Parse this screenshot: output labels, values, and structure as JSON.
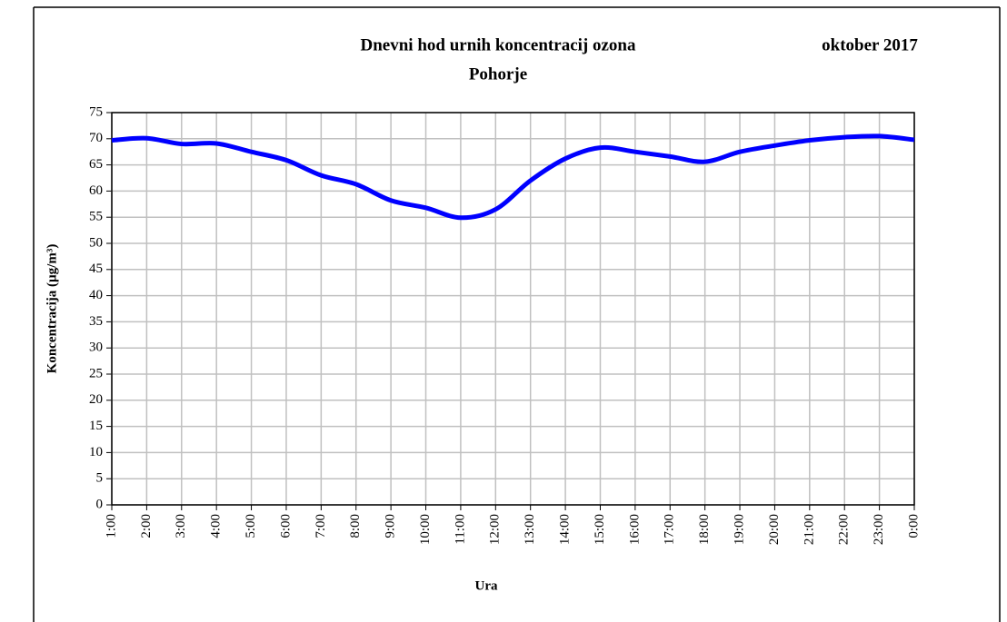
{
  "chart_data": {
    "type": "line",
    "title": "Dnevni hod urnih koncentracij ozona",
    "subtitle": "Pohorje",
    "annotation": "oktober 2017",
    "x_label": "Ura",
    "y_label": "Koncentracija  (µg/m³)",
    "categories": [
      "1:00",
      "2:00",
      "3:00",
      "4:00",
      "5:00",
      "6:00",
      "7:00",
      "8:00",
      "9:00",
      "10:00",
      "11:00",
      "12:00",
      "13:00",
      "14:00",
      "15:00",
      "16:00",
      "17:00",
      "18:00",
      "19:00",
      "20:00",
      "21:00",
      "22:00",
      "23:00",
      "0:00"
    ],
    "series": [
      {
        "name": "Pohorje",
        "color": "#0000ff",
        "values": [
          69.7,
          70.1,
          69.0,
          69.1,
          67.5,
          65.9,
          63.0,
          61.3,
          58.2,
          56.8,
          54.9,
          56.5,
          62.0,
          66.2,
          68.3,
          67.5,
          66.6,
          65.6,
          67.5,
          68.7,
          69.7,
          70.3,
          70.5,
          69.8
        ]
      }
    ],
    "ylim": [
      0,
      75
    ],
    "yticks": [
      0,
      5,
      10,
      15,
      20,
      25,
      30,
      35,
      40,
      45,
      50,
      55,
      60,
      65,
      70,
      75
    ],
    "grid": true
  }
}
